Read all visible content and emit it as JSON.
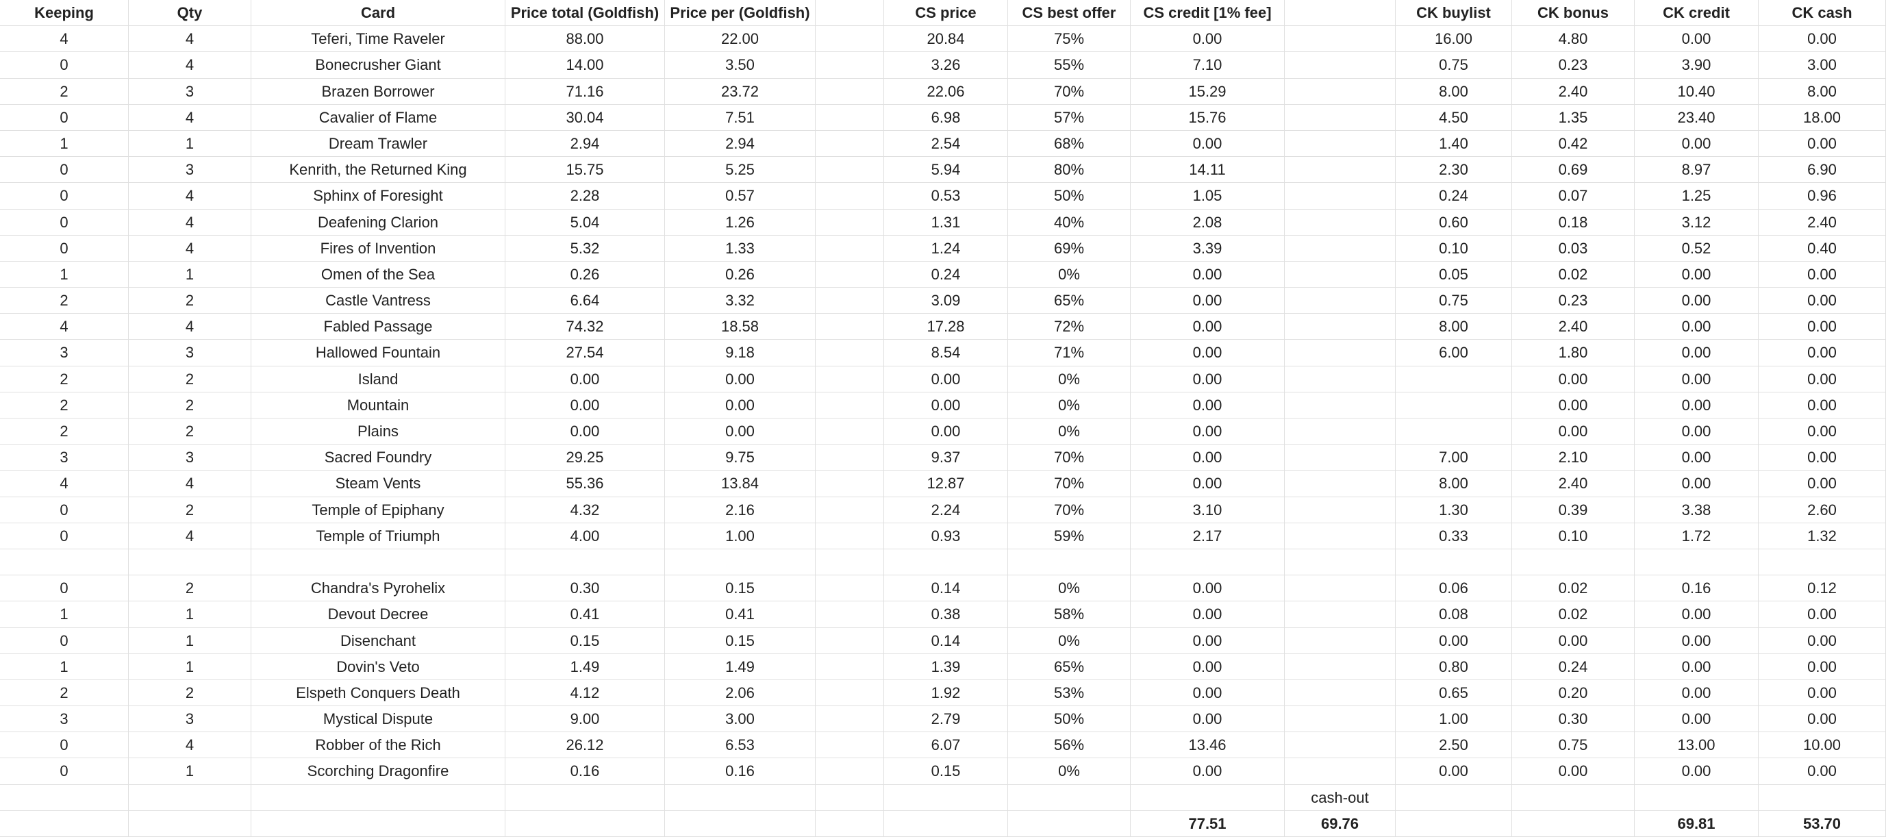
{
  "table": {
    "header": [
      "Keeping",
      "Qty",
      "Card",
      "Price total (Goldfish)",
      "Price per (Goldfish)",
      "CS price",
      "CS best offer",
      "CS credit [1% fee]",
      "CK buylist",
      "CK bonus",
      "CK credit",
      "CK cash"
    ],
    "groups": [
      [
        [
          4,
          4,
          "Teferi, Time Raveler",
          "88.00",
          "22.00",
          "20.84",
          "75%",
          "0.00",
          "16.00",
          "4.80",
          "0.00",
          "0.00"
        ],
        [
          0,
          4,
          "Bonecrusher Giant",
          "14.00",
          "3.50",
          "3.26",
          "55%",
          "7.10",
          "0.75",
          "0.23",
          "3.90",
          "3.00"
        ],
        [
          2,
          3,
          "Brazen Borrower",
          "71.16",
          "23.72",
          "22.06",
          "70%",
          "15.29",
          "8.00",
          "2.40",
          "10.40",
          "8.00"
        ],
        [
          0,
          4,
          "Cavalier of Flame",
          "30.04",
          "7.51",
          "6.98",
          "57%",
          "15.76",
          "4.50",
          "1.35",
          "23.40",
          "18.00"
        ],
        [
          1,
          1,
          "Dream Trawler",
          "2.94",
          "2.94",
          "2.54",
          "68%",
          "0.00",
          "1.40",
          "0.42",
          "0.00",
          "0.00"
        ],
        [
          0,
          3,
          "Kenrith, the Returned King",
          "15.75",
          "5.25",
          "5.94",
          "80%",
          "14.11",
          "2.30",
          "0.69",
          "8.97",
          "6.90"
        ],
        [
          0,
          4,
          "Sphinx of Foresight",
          "2.28",
          "0.57",
          "0.53",
          "50%",
          "1.05",
          "0.24",
          "0.07",
          "1.25",
          "0.96"
        ],
        [
          0,
          4,
          "Deafening Clarion",
          "5.04",
          "1.26",
          "1.31",
          "40%",
          "2.08",
          "0.60",
          "0.18",
          "3.12",
          "2.40"
        ],
        [
          0,
          4,
          "Fires of Invention",
          "5.32",
          "1.33",
          "1.24",
          "69%",
          "3.39",
          "0.10",
          "0.03",
          "0.52",
          "0.40"
        ],
        [
          1,
          1,
          "Omen of the Sea",
          "0.26",
          "0.26",
          "0.24",
          "0%",
          "0.00",
          "0.05",
          "0.02",
          "0.00",
          "0.00"
        ],
        [
          2,
          2,
          "Castle Vantress",
          "6.64",
          "3.32",
          "3.09",
          "65%",
          "0.00",
          "0.75",
          "0.23",
          "0.00",
          "0.00"
        ],
        [
          4,
          4,
          "Fabled Passage",
          "74.32",
          "18.58",
          "17.28",
          "72%",
          "0.00",
          "8.00",
          "2.40",
          "0.00",
          "0.00"
        ],
        [
          3,
          3,
          "Hallowed Fountain",
          "27.54",
          "9.18",
          "8.54",
          "71%",
          "0.00",
          "6.00",
          "1.80",
          "0.00",
          "0.00"
        ],
        [
          2,
          2,
          "Island",
          "0.00",
          "0.00",
          "0.00",
          "0%",
          "0.00",
          null,
          "0.00",
          "0.00",
          "0.00"
        ],
        [
          2,
          2,
          "Mountain",
          "0.00",
          "0.00",
          "0.00",
          "0%",
          "0.00",
          null,
          "0.00",
          "0.00",
          "0.00"
        ],
        [
          2,
          2,
          "Plains",
          "0.00",
          "0.00",
          "0.00",
          "0%",
          "0.00",
          null,
          "0.00",
          "0.00",
          "0.00"
        ],
        [
          3,
          3,
          "Sacred Foundry",
          "29.25",
          "9.75",
          "9.37",
          "70%",
          "0.00",
          "7.00",
          "2.10",
          "0.00",
          "0.00"
        ],
        [
          4,
          4,
          "Steam Vents",
          "55.36",
          "13.84",
          "12.87",
          "70%",
          "0.00",
          "8.00",
          "2.40",
          "0.00",
          "0.00"
        ],
        [
          0,
          2,
          "Temple of Epiphany",
          "4.32",
          "2.16",
          "2.24",
          "70%",
          "3.10",
          "1.30",
          "0.39",
          "3.38",
          "2.60"
        ],
        [
          0,
          4,
          "Temple of Triumph",
          "4.00",
          "1.00",
          "0.93",
          "59%",
          "2.17",
          "0.33",
          "0.10",
          "1.72",
          "1.32"
        ]
      ],
      [
        [
          0,
          2,
          "Chandra's Pyrohelix",
          "0.30",
          "0.15",
          "0.14",
          "0%",
          "0.00",
          "0.06",
          "0.02",
          "0.16",
          "0.12"
        ],
        [
          1,
          1,
          "Devout Decree",
          "0.41",
          "0.41",
          "0.38",
          "58%",
          "0.00",
          "0.08",
          "0.02",
          "0.00",
          "0.00"
        ],
        [
          0,
          1,
          "Disenchant",
          "0.15",
          "0.15",
          "0.14",
          "0%",
          "0.00",
          "0.00",
          "0.00",
          "0.00",
          "0.00"
        ],
        [
          1,
          1,
          "Dovin's Veto",
          "1.49",
          "1.49",
          "1.39",
          "65%",
          "0.00",
          "0.80",
          "0.24",
          "0.00",
          "0.00"
        ],
        [
          2,
          2,
          "Elspeth Conquers Death",
          "4.12",
          "2.06",
          "1.92",
          "53%",
          "0.00",
          "0.65",
          "0.20",
          "0.00",
          "0.00"
        ],
        [
          3,
          3,
          "Mystical Dispute",
          "9.00",
          "3.00",
          "2.79",
          "50%",
          "0.00",
          "1.00",
          "0.30",
          "0.00",
          "0.00"
        ],
        [
          0,
          4,
          "Robber of the Rich",
          "26.12",
          "6.53",
          "6.07",
          "56%",
          "13.46",
          "2.50",
          "0.75",
          "13.00",
          "10.00"
        ],
        [
          0,
          1,
          "Scorching Dragonfire",
          "0.16",
          "0.16",
          "0.15",
          "0%",
          "0.00",
          "0.00",
          "0.00",
          "0.00",
          "0.00"
        ]
      ]
    ],
    "summary": {
      "label": "cash-out",
      "cs_credit_total": "77.51",
      "cash_out_total": "69.76",
      "ck_credit_total": "69.81",
      "ck_cash_total": "53.70"
    }
  }
}
